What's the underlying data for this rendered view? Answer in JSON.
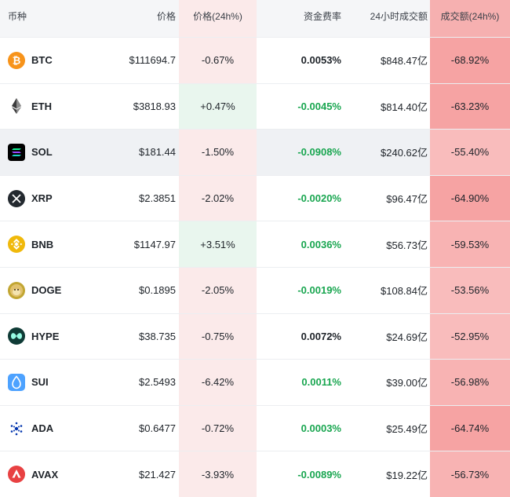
{
  "header": {
    "coin": "币种",
    "price": "价格",
    "price_change": "价格(24h%)",
    "funding_rate": "资金费率",
    "volume": "24小时成交额",
    "volume_change": "成交额(24h%)"
  },
  "rows": [
    {
      "symbol": "BTC",
      "icon": "bitcoin-icon",
      "price": "$111694.7",
      "change": "-0.67%",
      "funding": "0.0053%",
      "volume": "$848.47亿",
      "volume_change": "-68.92%"
    },
    {
      "symbol": "ETH",
      "icon": "ethereum-icon",
      "price": "$3818.93",
      "change": "+0.47%",
      "funding": "-0.0045%",
      "volume": "$814.40亿",
      "volume_change": "-63.23%"
    },
    {
      "symbol": "SOL",
      "icon": "solana-icon",
      "price": "$181.44",
      "change": "-1.50%",
      "funding": "-0.0908%",
      "volume": "$240.62亿",
      "volume_change": "-55.40%"
    },
    {
      "symbol": "XRP",
      "icon": "xrp-icon",
      "price": "$2.3851",
      "change": "-2.02%",
      "funding": "-0.0020%",
      "volume": "$96.47亿",
      "volume_change": "-64.90%"
    },
    {
      "symbol": "BNB",
      "icon": "bnb-icon",
      "price": "$1147.97",
      "change": "+3.51%",
      "funding": "0.0036%",
      "volume": "$56.73亿",
      "volume_change": "-59.53%"
    },
    {
      "symbol": "DOGE",
      "icon": "doge-icon",
      "price": "$0.1895",
      "change": "-2.05%",
      "funding": "-0.0019%",
      "volume": "$108.84亿",
      "volume_change": "-53.56%"
    },
    {
      "symbol": "HYPE",
      "icon": "hype-icon",
      "price": "$38.735",
      "change": "-0.75%",
      "funding": "0.0072%",
      "volume": "$24.69亿",
      "volume_change": "-52.95%"
    },
    {
      "symbol": "SUI",
      "icon": "sui-icon",
      "price": "$2.5493",
      "change": "-6.42%",
      "funding": "0.0011%",
      "volume": "$39.00亿",
      "volume_change": "-56.98%"
    },
    {
      "symbol": "ADA",
      "icon": "cardano-icon",
      "price": "$0.6477",
      "change": "-0.72%",
      "funding": "0.0003%",
      "volume": "$25.49亿",
      "volume_change": "-64.74%"
    },
    {
      "symbol": "AVAX",
      "icon": "avalanche-icon",
      "price": "$21.427",
      "change": "-3.93%",
      "funding": "-0.0089%",
      "volume": "$19.22亿",
      "volume_change": "-56.73%"
    }
  ],
  "colors": {
    "positive": "#19a650",
    "negative_bg": "#fbeaea",
    "positive_bg": "#e9f6ee",
    "volume_drop_bg": "#f6a3a3",
    "btc": "#f7931a",
    "bnb": "#f0b90b",
    "doge": "#c2a633",
    "hype": "#0f3b36",
    "sui": "#4da2ff",
    "ada": "#0033ad",
    "avax": "#e84142",
    "xrp": "#23292f",
    "sol": "#000000"
  }
}
